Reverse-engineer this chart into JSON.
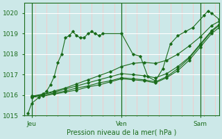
{
  "title": "Pression niveau de la mer( hPa )",
  "ylim": [
    1015,
    1020.5
  ],
  "yticks": [
    1015,
    1016,
    1017,
    1018,
    1019,
    1020
  ],
  "xlim": [
    -2,
    50
  ],
  "xtick_positions": [
    0,
    24,
    45
  ],
  "xtick_labels": [
    "Jeu",
    "Ven",
    "Sam"
  ],
  "bg_color": "#cce8e8",
  "grid_color_major": "#ffffff",
  "grid_color_minor": "#f5c8c8",
  "line_color": "#1a6b1a",
  "minor_xtick_step": 3,
  "series": [
    [
      [
        -1,
        1015.1
      ],
      [
        0,
        1015.6
      ],
      [
        2,
        1015.9
      ],
      [
        4,
        1016.2
      ],
      [
        5,
        1016.5
      ],
      [
        6,
        1016.9
      ],
      [
        7,
        1017.6
      ],
      [
        8,
        1018.0
      ],
      [
        9,
        1018.8
      ],
      [
        10,
        1018.9
      ],
      [
        11,
        1019.1
      ],
      [
        12,
        1018.9
      ],
      [
        13,
        1018.8
      ],
      [
        14,
        1018.8
      ],
      [
        15,
        1019.0
      ],
      [
        16,
        1019.1
      ],
      [
        17,
        1019.0
      ],
      [
        18,
        1018.9
      ],
      [
        19,
        1019.0
      ],
      [
        24,
        1019.0
      ],
      [
        27,
        1018.0
      ],
      [
        29,
        1017.9
      ],
      [
        31,
        1016.9
      ],
      [
        33,
        1016.7
      ],
      [
        35,
        1017.3
      ],
      [
        37,
        1018.5
      ],
      [
        39,
        1018.9
      ],
      [
        41,
        1019.1
      ],
      [
        43,
        1019.3
      ],
      [
        46,
        1019.9
      ],
      [
        47,
        1020.1
      ],
      [
        48,
        1020.0
      ],
      [
        50,
        1019.7
      ]
    ],
    [
      [
        0,
        1015.9
      ],
      [
        3,
        1016.05
      ],
      [
        6,
        1016.2
      ],
      [
        9,
        1016.35
      ],
      [
        12,
        1016.55
      ],
      [
        15,
        1016.75
      ],
      [
        18,
        1016.95
      ],
      [
        21,
        1017.15
      ],
      [
        24,
        1017.4
      ],
      [
        27,
        1017.55
      ],
      [
        30,
        1017.6
      ],
      [
        33,
        1017.55
      ],
      [
        36,
        1017.7
      ],
      [
        39,
        1018.0
      ],
      [
        42,
        1018.4
      ],
      [
        45,
        1018.85
      ],
      [
        48,
        1019.4
      ],
      [
        50,
        1019.6
      ]
    ],
    [
      [
        0,
        1015.95
      ],
      [
        3,
        1016.05
      ],
      [
        6,
        1016.15
      ],
      [
        9,
        1016.3
      ],
      [
        12,
        1016.45
      ],
      [
        15,
        1016.6
      ],
      [
        18,
        1016.75
      ],
      [
        21,
        1016.9
      ],
      [
        24,
        1017.05
      ],
      [
        27,
        1017.0
      ],
      [
        30,
        1016.95
      ],
      [
        33,
        1016.85
      ],
      [
        36,
        1017.05
      ],
      [
        39,
        1017.4
      ],
      [
        42,
        1017.85
      ],
      [
        45,
        1018.5
      ],
      [
        48,
        1019.15
      ],
      [
        50,
        1019.45
      ]
    ],
    [
      [
        0,
        1015.95
      ],
      [
        3,
        1016.0
      ],
      [
        6,
        1016.1
      ],
      [
        9,
        1016.2
      ],
      [
        12,
        1016.35
      ],
      [
        15,
        1016.45
      ],
      [
        18,
        1016.6
      ],
      [
        21,
        1016.7
      ],
      [
        24,
        1016.85
      ],
      [
        27,
        1016.8
      ],
      [
        30,
        1016.75
      ],
      [
        33,
        1016.65
      ],
      [
        36,
        1016.9
      ],
      [
        39,
        1017.3
      ],
      [
        42,
        1017.8
      ],
      [
        45,
        1018.45
      ],
      [
        48,
        1019.1
      ],
      [
        50,
        1019.4
      ]
    ],
    [
      [
        0,
        1015.9
      ],
      [
        3,
        1015.95
      ],
      [
        6,
        1016.05
      ],
      [
        9,
        1016.15
      ],
      [
        12,
        1016.25
      ],
      [
        15,
        1016.4
      ],
      [
        18,
        1016.5
      ],
      [
        21,
        1016.65
      ],
      [
        24,
        1016.8
      ],
      [
        27,
        1016.75
      ],
      [
        30,
        1016.7
      ],
      [
        33,
        1016.6
      ],
      [
        36,
        1016.85
      ],
      [
        39,
        1017.2
      ],
      [
        42,
        1017.7
      ],
      [
        45,
        1018.35
      ],
      [
        48,
        1019.0
      ],
      [
        50,
        1019.3
      ]
    ]
  ]
}
